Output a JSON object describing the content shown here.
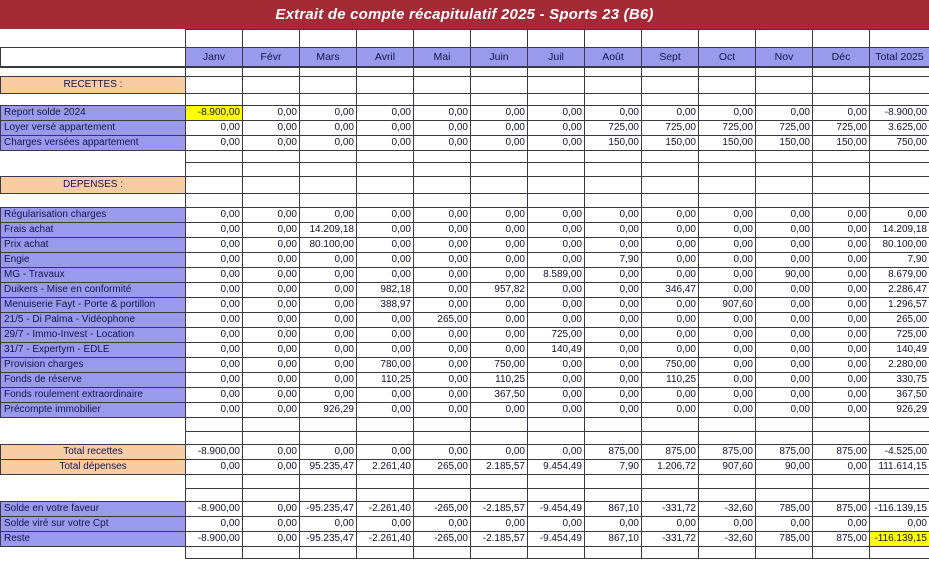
{
  "title": "Extrait de compte récapitulatif 2025 - Sports 23 (B6)",
  "columns": [
    "Janv",
    "Févr",
    "Mars",
    "Avril",
    "Mai",
    "Juin",
    "Juil",
    "Août",
    "Sept",
    "Oct",
    "Nov",
    "Déc",
    "Total 2025"
  ],
  "colors": {
    "banner": "#A42A35",
    "header_fill": "#9A9AEC",
    "section_fill": "#F9CDA3",
    "highlight": "#FFFF00",
    "grid": "#3a3a44"
  },
  "rows": [
    {
      "t": "spacer",
      "h": 18
    },
    {
      "t": "header"
    },
    {
      "t": "spacer",
      "h": 10
    },
    {
      "t": "section",
      "label": "RECETTES :"
    },
    {
      "t": "spacer",
      "h": 12
    },
    {
      "t": "data",
      "label": "Report solde 2024",
      "hl": [
        0
      ],
      "values": [
        "-8.900,00",
        "0,00",
        "0,00",
        "0,00",
        "0,00",
        "0,00",
        "0,00",
        "0,00",
        "0,00",
        "0,00",
        "0,00",
        "0,00",
        "-8.900,00"
      ]
    },
    {
      "t": "data",
      "label": "Loyer versé appartement",
      "values": [
        "0,00",
        "0,00",
        "0,00",
        "0,00",
        "0,00",
        "0,00",
        "0,00",
        "725,00",
        "725,00",
        "725,00",
        "725,00",
        "725,00",
        "3.625,00"
      ]
    },
    {
      "t": "data",
      "label": "Charges versées appartement",
      "values": [
        "0,00",
        "0,00",
        "0,00",
        "0,00",
        "0,00",
        "0,00",
        "0,00",
        "150,00",
        "150,00",
        "150,00",
        "150,00",
        "150,00",
        "750,00"
      ]
    },
    {
      "t": "spacer",
      "h": 12
    },
    {
      "t": "spacer",
      "h": 14
    },
    {
      "t": "section",
      "label": "DEPENSES :"
    },
    {
      "t": "spacer",
      "h": 14
    },
    {
      "t": "data",
      "label": "Régularisation charges",
      "values": [
        "0,00",
        "0,00",
        "0,00",
        "0,00",
        "0,00",
        "0,00",
        "0,00",
        "0,00",
        "0,00",
        "0,00",
        "0,00",
        "0,00",
        "0,00"
      ]
    },
    {
      "t": "data",
      "label": "Frais achat",
      "values": [
        "0,00",
        "0,00",
        "14.209,18",
        "0,00",
        "0,00",
        "0,00",
        "0,00",
        "0,00",
        "0,00",
        "0,00",
        "0,00",
        "0,00",
        "14.209,18"
      ]
    },
    {
      "t": "data",
      "label": "Prix achat",
      "values": [
        "0,00",
        "0,00",
        "80.100,00",
        "0,00",
        "0,00",
        "0,00",
        "0,00",
        "0,00",
        "0,00",
        "0,00",
        "0,00",
        "0,00",
        "80.100,00"
      ]
    },
    {
      "t": "data",
      "label": "Engie",
      "values": [
        "0,00",
        "0,00",
        "0,00",
        "0,00",
        "0,00",
        "0,00",
        "0,00",
        "7,90",
        "0,00",
        "0,00",
        "0,00",
        "0,00",
        "7,90"
      ]
    },
    {
      "t": "data",
      "label": "MG - Travaux",
      "values": [
        "0,00",
        "0,00",
        "0,00",
        "0,00",
        "0,00",
        "0,00",
        "8.589,00",
        "0,00",
        "0,00",
        "0,00",
        "90,00",
        "0,00",
        "8.679,00"
      ]
    },
    {
      "t": "data",
      "label": "Duikers - Mise en conformité",
      "values": [
        "0,00",
        "0,00",
        "0,00",
        "982,18",
        "0,00",
        "957,82",
        "0,00",
        "0,00",
        "346,47",
        "0,00",
        "0,00",
        "0,00",
        "2.286,47"
      ]
    },
    {
      "t": "data",
      "label": "Menuiserie Fayt - Porte & portillon",
      "values": [
        "0,00",
        "0,00",
        "0,00",
        "388,97",
        "0,00",
        "0,00",
        "0,00",
        "0,00",
        "0,00",
        "907,60",
        "0,00",
        "0,00",
        "1.296,57"
      ]
    },
    {
      "t": "data",
      "label": "21/5 - Di Palma - Vidéophone",
      "values": [
        "0,00",
        "0,00",
        "0,00",
        "0,00",
        "265,00",
        "0,00",
        "0,00",
        "0,00",
        "0,00",
        "0,00",
        "0,00",
        "0,00",
        "265,00"
      ]
    },
    {
      "t": "data",
      "label": "29/7 - Immo-Invest - Location",
      "values": [
        "0,00",
        "0,00",
        "0,00",
        "0,00",
        "0,00",
        "0,00",
        "725,00",
        "0,00",
        "0,00",
        "0,00",
        "0,00",
        "0,00",
        "725,00"
      ]
    },
    {
      "t": "data",
      "label": "31/7 - Expertym - EDLE",
      "values": [
        "0,00",
        "0,00",
        "0,00",
        "0,00",
        "0,00",
        "0,00",
        "140,49",
        "0,00",
        "0,00",
        "0,00",
        "0,00",
        "0,00",
        "140,49"
      ]
    },
    {
      "t": "data",
      "label": "Provision charges",
      "values": [
        "0,00",
        "0,00",
        "0,00",
        "780,00",
        "0,00",
        "750,00",
        "0,00",
        "0,00",
        "750,00",
        "0,00",
        "0,00",
        "0,00",
        "2.280,00"
      ]
    },
    {
      "t": "data",
      "label": "Fonds de réserve",
      "values": [
        "0,00",
        "0,00",
        "0,00",
        "110,25",
        "0,00",
        "110,25",
        "0,00",
        "0,00",
        "110,25",
        "0,00",
        "0,00",
        "0,00",
        "330,75"
      ]
    },
    {
      "t": "data",
      "label": "Fonds roulement extraordinaire",
      "values": [
        "0,00",
        "0,00",
        "0,00",
        "0,00",
        "0,00",
        "367,50",
        "0,00",
        "0,00",
        "0,00",
        "0,00",
        "0,00",
        "0,00",
        "367,50"
      ]
    },
    {
      "t": "data",
      "label": "Précompte immobilier",
      "values": [
        "0,00",
        "0,00",
        "926,29",
        "0,00",
        "0,00",
        "0,00",
        "0,00",
        "0,00",
        "0,00",
        "0,00",
        "0,00",
        "0,00",
        "926,29"
      ]
    },
    {
      "t": "spacer",
      "h": 14
    },
    {
      "t": "spacer",
      "h": 13
    },
    {
      "t": "total",
      "label": "Total recettes",
      "values": [
        "-8.900,00",
        "0,00",
        "0,00",
        "0,00",
        "0,00",
        "0,00",
        "0,00",
        "875,00",
        "875,00",
        "875,00",
        "875,00",
        "875,00",
        "-4.525,00"
      ]
    },
    {
      "t": "total",
      "label": "Total dépenses",
      "values": [
        "0,00",
        "0,00",
        "95.235,47",
        "2.261,40",
        "265,00",
        "2.185,57",
        "9.454,49",
        "7,90",
        "1.206,72",
        "907,60",
        "90,00",
        "0,00",
        "111.614,15"
      ]
    },
    {
      "t": "spacer",
      "h": 14
    },
    {
      "t": "spacer",
      "h": 13
    },
    {
      "t": "data",
      "label": "Solde en votre faveur",
      "values": [
        "-8.900,00",
        "0,00",
        "-95.235,47",
        "-2.261,40",
        "-265,00",
        "-2.185,57",
        "-9.454,49",
        "867,10",
        "-331,72",
        "-32,60",
        "785,00",
        "875,00",
        "-116.139,15"
      ]
    },
    {
      "t": "data",
      "label": "Solde viré sur votre Cpt",
      "values": [
        "0,00",
        "0,00",
        "0,00",
        "0,00",
        "0,00",
        "0,00",
        "0,00",
        "0,00",
        "0,00",
        "0,00",
        "0,00",
        "0,00",
        "0,00"
      ]
    },
    {
      "t": "data",
      "label": "Reste",
      "hl": [
        12
      ],
      "values": [
        "-8.900,00",
        "0,00",
        "-95.235,47",
        "-2.261,40",
        "-265,00",
        "-2.185,57",
        "-9.454,49",
        "867,10",
        "-331,72",
        "-32,60",
        "785,00",
        "875,00",
        "-116.139,15"
      ]
    },
    {
      "t": "spacer",
      "h": 12
    }
  ]
}
